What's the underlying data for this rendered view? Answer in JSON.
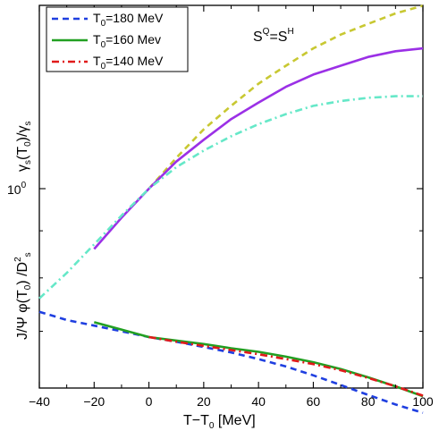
{
  "chart_data": {
    "type": "line",
    "xlabel_main": "T−T",
    "xlabel_sub": "0",
    "xlabel_unit": " [MeV]",
    "ylabel_upper": {
      "a": "γ",
      "b": "s",
      "c": "(T",
      "d": "0",
      "e": ")/γ",
      "f": "s"
    },
    "ylabel_lower": {
      "a": "J/Ψ φ(T",
      "b": "0",
      "c": ") /D",
      "d": "2",
      "e": "s"
    },
    "y_tick": {
      "base": "10",
      "exp": "0"
    },
    "annotation": {
      "a": "S",
      "b": "Q",
      "c": "=S",
      "d": "H"
    },
    "x_ticks": [
      "−40",
      "−20",
      "0",
      "20",
      "40",
      "60",
      "80",
      "100"
    ],
    "x_tick_values": [
      -40,
      -20,
      0,
      20,
      40,
      60,
      80,
      100
    ],
    "xlim": [
      -40,
      100
    ],
    "y_scale": "log",
    "grid": false,
    "legend_position": "top-left",
    "legend": [
      {
        "prefix": "T",
        "sub": "0",
        "suffix": "=180 MeV",
        "color": "#1f3fe0",
        "dash": "dashed"
      },
      {
        "prefix": "T",
        "sub": "0",
        "suffix": "=160 Mev",
        "color": "#22a022",
        "dash": "solid"
      },
      {
        "prefix": "T",
        "sub": "0",
        "suffix": "=140 MeV",
        "color": "#e01a1a",
        "dash": "dashdot"
      }
    ],
    "series_upper": [
      {
        "color": "#c8c832",
        "dash": "dashed",
        "x": [
          0,
          10,
          20,
          30,
          40,
          50,
          60,
          70,
          80,
          90,
          100
        ],
        "y": [
          1.0,
          1.08,
          1.16,
          1.23,
          1.3,
          1.36,
          1.42,
          1.47,
          1.51,
          1.55,
          1.58
        ]
      },
      {
        "color": "#9b30e6",
        "dash": "solid",
        "x": [
          -20,
          -10,
          0,
          10,
          20,
          30,
          40,
          50,
          60,
          70,
          80,
          90,
          100
        ],
        "y": [
          0.86,
          0.93,
          1.0,
          1.07,
          1.13,
          1.19,
          1.24,
          1.29,
          1.33,
          1.36,
          1.39,
          1.41,
          1.42
        ]
      },
      {
        "color": "#66e8c8",
        "dash": "dashdot",
        "x": [
          -40,
          -30,
          -20,
          -10,
          0,
          10,
          20,
          30,
          40,
          50,
          60,
          70,
          80,
          90,
          100
        ],
        "y": [
          0.76,
          0.81,
          0.87,
          0.935,
          1.0,
          1.055,
          1.1,
          1.14,
          1.175,
          1.205,
          1.23,
          1.245,
          1.255,
          1.26,
          1.26
        ]
      }
    ],
    "series_lower": [
      {
        "color": "#1f3fe0",
        "dash": "dashed",
        "x": [
          -40,
          -30,
          -20,
          -10,
          0,
          10,
          20,
          30,
          40,
          50,
          60,
          70,
          80,
          90,
          100
        ],
        "y": [
          0.735,
          0.72,
          0.71,
          0.7,
          0.69,
          0.682,
          0.673,
          0.664,
          0.653,
          0.641,
          0.627,
          0.612,
          0.597,
          0.583,
          0.571
        ]
      },
      {
        "color": "#22a022",
        "dash": "solid",
        "x": [
          -20,
          -10,
          0,
          10,
          20,
          30,
          40,
          50,
          60,
          70,
          80,
          90,
          100
        ],
        "y": [
          0.716,
          0.703,
          0.69,
          0.684,
          0.678,
          0.671,
          0.665,
          0.657,
          0.648,
          0.637,
          0.624,
          0.61,
          0.595
        ]
      },
      {
        "color": "#e01a1a",
        "dash": "dashdot",
        "x": [
          0,
          10,
          20,
          30,
          40,
          50,
          60,
          70,
          80,
          90,
          100
        ],
        "y": [
          0.69,
          0.682,
          0.675,
          0.668,
          0.661,
          0.653,
          0.645,
          0.635,
          0.623,
          0.61,
          0.596
        ]
      }
    ]
  }
}
